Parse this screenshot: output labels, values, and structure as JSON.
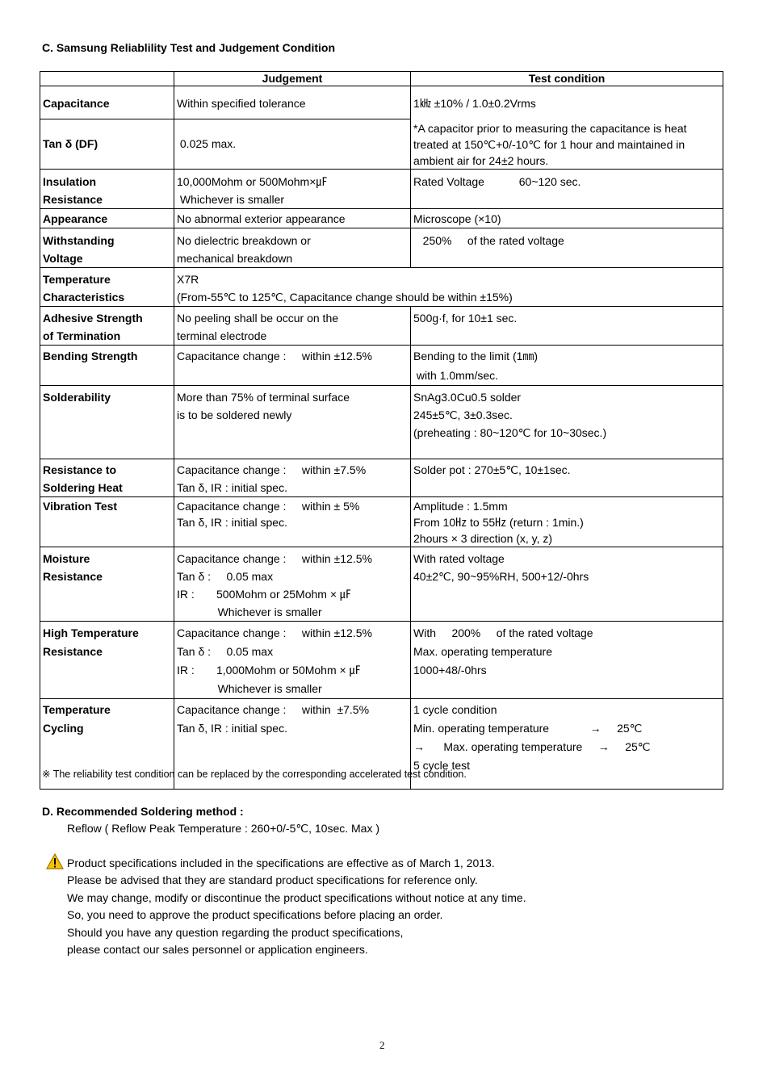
{
  "section_c_title": "C. Samsung Reliablility Test and Judgement Condition",
  "table": {
    "headers": [
      "",
      "Judgement",
      "Test condition"
    ],
    "rows": [
      {
        "label": [
          "Capacitance"
        ],
        "judgement": [
          "Within specified tolerance"
        ],
        "condition": [
          "1㎑ ±10% / 1.0±0.2Vrms",
          "",
          "*A capacitor prior to measuring the capacitance is heat",
          "treated at 150℃+0/-10℃ for 1 hour and maintained in",
          "ambient air for 24±2 hours."
        ]
      },
      {
        "label": [
          "Tan δ (DF)"
        ],
        "judgement": [
          " 0.025 max."
        ]
      },
      {
        "label": [
          "Insulation",
          "Resistance"
        ],
        "judgement": [
          "10,000Mohm or 500Mohm×㎌",
          " Whichever is smaller"
        ],
        "condition": [
          "Rated Voltage           60~120 sec."
        ]
      },
      {
        "label": [
          "Appearance"
        ],
        "judgement": [
          "No abnormal exterior appearance"
        ],
        "condition": [
          "Microscope (×10)"
        ]
      },
      {
        "label": [
          "Withstanding",
          "Voltage"
        ],
        "judgement": [
          "No dielectric breakdown or",
          "mechanical breakdown"
        ],
        "condition": [
          "   250%     of the rated voltage"
        ]
      },
      {
        "label": [
          "Temperature",
          "Characteristics"
        ],
        "judgement": [
          "X7R",
          "(From-55℃ to 125℃, Capacitance change should be within ±15%)"
        ]
      },
      {
        "label": [
          "Adhesive Strength",
          "of Termination"
        ],
        "judgement": [
          "No peeling shall be occur on the",
          "terminal electrode"
        ],
        "condition": [
          "500g·f, for 10±1 sec."
        ]
      },
      {
        "label": [
          "Bending Strength"
        ],
        "judgement": [
          "Capacitance change :     within ±12.5%"
        ],
        "condition": [
          "Bending to the limit (1㎜)",
          " with 1.0mm/sec."
        ]
      },
      {
        "label": [
          "Solderability"
        ],
        "judgement": [
          "More than 75% of terminal surface",
          "is to be soldered newly"
        ],
        "condition": [
          "SnAg3.0Cu0.5 solder",
          "245±5℃, 3±0.3sec.",
          "(preheating : 80~120℃ for 10~30sec.)"
        ]
      },
      {
        "label": [
          "Resistance to",
          "Soldering Heat"
        ],
        "judgement": [
          "Capacitance change :     within ±7.5%",
          "Tan δ, IR : initial spec."
        ],
        "condition": [
          "Solder pot : 270±5℃, 10±1sec."
        ]
      },
      {
        "label": [
          "Vibration Test"
        ],
        "judgement": [
          "Capacitance change :     within ± 5%",
          "Tan δ, IR : initial spec."
        ],
        "condition": [
          "Amplitude : 1.5mm",
          "From 10㎐ to 55㎐ (return : 1min.)",
          "2hours × 3 direction (x, y, z)"
        ]
      },
      {
        "label": [
          "Moisture",
          "Resistance"
        ],
        "judgement": [
          "Capacitance change :     within ±12.5%",
          "Tan δ :     0.05 max",
          "IR :       500Mohm or 25Mohm × ㎌",
          "             Whichever is smaller"
        ],
        "condition": [
          "With rated voltage",
          "40±2℃, 90~95%RH, 500+12/-0hrs"
        ]
      },
      {
        "label": [
          "High Temperature",
          "Resistance"
        ],
        "judgement": [
          "Capacitance change :     within ±12.5%",
          "Tan δ :     0.05 max",
          "IR :       1,000Mohm or 50Mohm × ㎌",
          "             Whichever is smaller"
        ],
        "condition": [
          "With     200%     of the rated voltage",
          "Max. operating temperature",
          "1000+48/-0hrs"
        ]
      },
      {
        "label": [
          "Temperature",
          "Cycling"
        ],
        "judgement": [
          "Capacitance change :     within  ±7.5%",
          "Tan δ, IR : initial spec."
        ],
        "condition": [
          "1 cycle condition",
          "Min. operating temperature             →     25℃",
          "→      Max. operating temperature     →     25℃",
          "",
          "5 cycle test"
        ]
      }
    ]
  },
  "footnote": "※ The reliability test condition can be replaced by the corresponding accelerated test condition.",
  "section_d_title": "D. Recommended Soldering method :",
  "section_d_line": "Reflow ( Reflow Peak Temperature : 260+0/-5℃, 10sec. Max )",
  "notice_icon": "warning-triangle-icon",
  "notice_lines": [
    "Product specifications included in the specifications are effective as of March 1, 2013.",
    "Please be advised that they are standard product specifications for reference only.",
    "We may change, modify or discontinue the product specifications without notice at any time.",
    "So, you need to approve the product specifications before placing an order.",
    "Should you have any question regarding the product specifications,",
    "please contact our sales personnel or application engineers."
  ],
  "page_number": "2"
}
